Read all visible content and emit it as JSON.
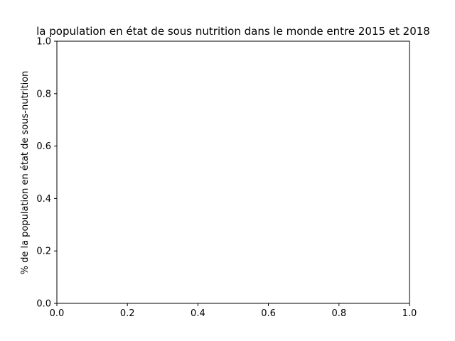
{
  "chart_data": {
    "type": "line",
    "title": "la population en état de sous nutrition dans le monde entre 2015 et 2018",
    "xlabel": "",
    "ylabel": "% de la population en état de sous-nutrition",
    "xlim": [
      0.0,
      1.0
    ],
    "ylim": [
      0.0,
      1.0
    ],
    "x_ticks": [
      "0.0",
      "0.2",
      "0.4",
      "0.6",
      "0.8",
      "1.0"
    ],
    "y_ticks": [
      "0.0",
      "0.2",
      "0.4",
      "0.6",
      "0.8",
      "1.0"
    ],
    "grid": false,
    "series": []
  }
}
